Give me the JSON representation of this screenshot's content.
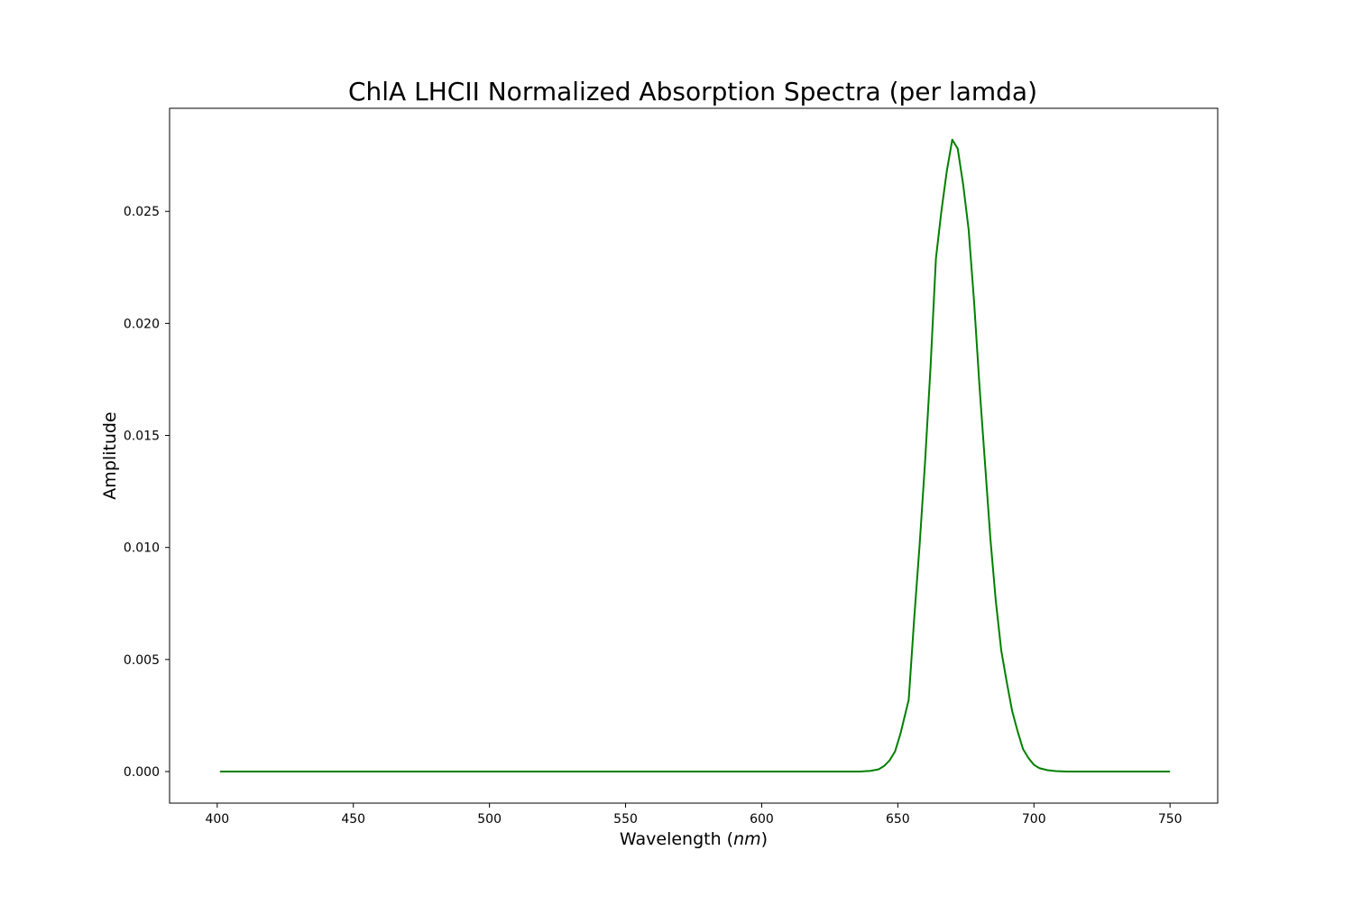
{
  "chart_data": {
    "type": "line",
    "title": "ChlA LHCII Normalized Absorption Spectra (per lamda)",
    "xlabel_main": "Wavelength (",
    "xlabel_unit": "nm",
    "xlabel_close": ")",
    "ylabel": "Amplitude",
    "xlim": [
      382.5,
      767.5
    ],
    "ylim": [
      -0.00141,
      0.0296
    ],
    "xticks": [
      400,
      450,
      500,
      550,
      600,
      650,
      700,
      750
    ],
    "xtick_labels": [
      "400",
      "450",
      "500",
      "550",
      "600",
      "650",
      "700",
      "750"
    ],
    "yticks": [
      0.0,
      0.005,
      0.01,
      0.015,
      0.02,
      0.025
    ],
    "ytick_labels": [
      "0.000",
      "0.005",
      "0.010",
      "0.015",
      "0.020",
      "0.025"
    ],
    "grid": false,
    "series": [
      {
        "color": "#008000",
        "x": [
          401,
          500,
          600,
          636,
          640,
          643,
          645,
          647,
          649,
          651,
          654,
          656,
          658,
          660,
          662,
          664,
          666,
          668,
          670,
          672,
          674,
          676,
          678,
          680,
          682,
          684,
          686,
          688,
          690,
          692,
          694,
          696,
          698,
          700,
          702,
          705,
          708,
          712,
          720,
          750
        ],
        "y": [
          0.0,
          0.0,
          0.0,
          0.0,
          3e-05,
          0.0001,
          0.00025,
          0.0005,
          0.0009,
          0.0017,
          0.0032,
          0.0068,
          0.0101,
          0.0138,
          0.018,
          0.0229,
          0.025,
          0.0268,
          0.0282,
          0.0278,
          0.0262,
          0.0242,
          0.021,
          0.0172,
          0.0138,
          0.0104,
          0.0076,
          0.0054,
          0.004,
          0.0027,
          0.0018,
          0.001,
          0.0006,
          0.0003,
          0.00015,
          6e-05,
          2e-05,
          0.0,
          0.0,
          0.0
        ]
      }
    ]
  }
}
